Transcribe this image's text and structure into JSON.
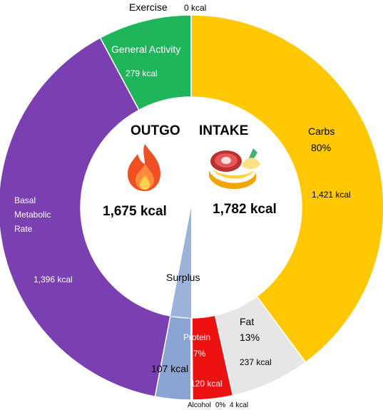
{
  "chart_data": {
    "type": "donut",
    "outgo": {
      "heading": "OUTGO",
      "total_label": "1,675 kcal",
      "icon": "fire-icon",
      "segments": [
        {
          "name": "Exercise",
          "value": 0,
          "value_label": "0 kcal",
          "color": "#ffffff"
        },
        {
          "name": "General Activity",
          "value": 279,
          "value_label": "279 kcal",
          "color": "#1fb55a"
        },
        {
          "name": "Basal Metabolic Rate",
          "name_lines": [
            "Basal",
            "Metabolic",
            "Rate"
          ],
          "value": 1396,
          "value_label": "1,396 kcal",
          "color": "#7a3fb0"
        },
        {
          "name": "Surplus",
          "value": 107,
          "value_label": "107 kcal",
          "color": "#8aa4d4"
        }
      ]
    },
    "intake": {
      "heading": "INTAKE",
      "total_label": "1,782 kcal",
      "icon": "meal-icon",
      "segments": [
        {
          "name": "Carbs",
          "percent_label": "80%",
          "value": 1421,
          "value_label": "1,421 kcal",
          "color": "#ffc800"
        },
        {
          "name": "Fat",
          "percent_label": "13%",
          "value": 237,
          "value_label": "237 kcal",
          "color": "#e6e6e6"
        },
        {
          "name": "Protein",
          "percent_label": "7%",
          "value": 120,
          "value_label": "120 kcal",
          "color": "#ee1111"
        },
        {
          "name": "Alcohol",
          "percent_label": "0%",
          "value": 4,
          "value_label": "4 kcal",
          "color": "#ffffff"
        }
      ]
    }
  }
}
